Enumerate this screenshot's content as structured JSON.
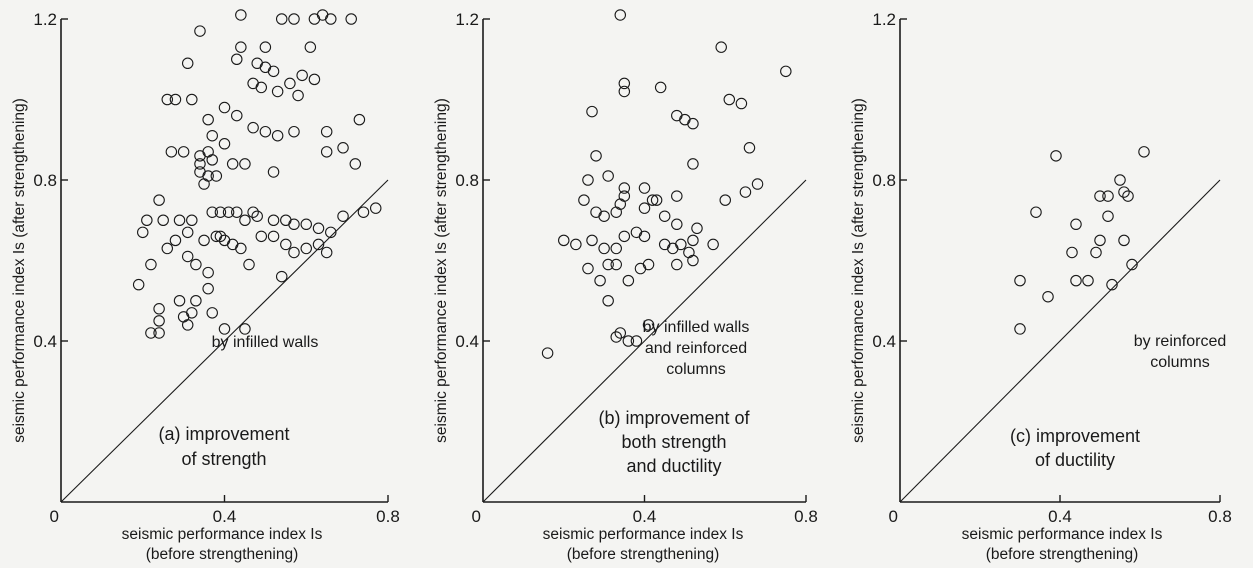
{
  "chart_data": [
    {
      "type": "scatter",
      "panel": "a",
      "caption_lines": [
        "(a) improvement",
        "of strength"
      ],
      "annotation_lines": [
        "by infilled walls"
      ],
      "xlabel_lines": [
        "seismic performance index Is",
        "(before strengthening)"
      ],
      "ylabel": "seismic performance index Is (after strengthening)",
      "xlim": [
        0,
        0.8
      ],
      "ylim": [
        0,
        1.2
      ],
      "x_ticks": [
        {
          "v": 0,
          "label": "0"
        },
        {
          "v": 0.4,
          "label": "0.4"
        },
        {
          "v": 0.8,
          "label": "0.8"
        }
      ],
      "y_ticks": [
        {
          "v": 0.4,
          "label": "0.4"
        },
        {
          "v": 0.8,
          "label": "0.8"
        },
        {
          "v": 1.2,
          "label": "1.2"
        }
      ],
      "reference_line": "y = x",
      "points": [
        [
          0.44,
          1.21
        ],
        [
          0.54,
          1.2
        ],
        [
          0.57,
          1.2
        ],
        [
          0.62,
          1.2
        ],
        [
          0.64,
          1.21
        ],
        [
          0.66,
          1.2
        ],
        [
          0.71,
          1.2
        ],
        [
          0.34,
          1.17
        ],
        [
          0.44,
          1.13
        ],
        [
          0.5,
          1.13
        ],
        [
          0.61,
          1.13
        ],
        [
          0.43,
          1.1
        ],
        [
          0.48,
          1.09
        ],
        [
          0.5,
          1.08
        ],
        [
          0.52,
          1.07
        ],
        [
          0.59,
          1.06
        ],
        [
          0.62,
          1.05
        ],
        [
          0.31,
          1.09
        ],
        [
          0.47,
          1.04
        ],
        [
          0.49,
          1.03
        ],
        [
          0.53,
          1.02
        ],
        [
          0.56,
          1.04
        ],
        [
          0.58,
          1.01
        ],
        [
          0.26,
          1.0
        ],
        [
          0.28,
          1.0
        ],
        [
          0.32,
          1.0
        ],
        [
          0.36,
          0.95
        ],
        [
          0.4,
          0.98
        ],
        [
          0.43,
          0.96
        ],
        [
          0.47,
          0.93
        ],
        [
          0.5,
          0.92
        ],
        [
          0.53,
          0.91
        ],
        [
          0.57,
          0.92
        ],
        [
          0.65,
          0.92
        ],
        [
          0.73,
          0.95
        ],
        [
          0.37,
          0.91
        ],
        [
          0.4,
          0.89
        ],
        [
          0.27,
          0.87
        ],
        [
          0.3,
          0.87
        ],
        [
          0.34,
          0.86
        ],
        [
          0.36,
          0.87
        ],
        [
          0.37,
          0.85
        ],
        [
          0.34,
          0.84
        ],
        [
          0.34,
          0.82
        ],
        [
          0.36,
          0.81
        ],
        [
          0.38,
          0.81
        ],
        [
          0.35,
          0.79
        ],
        [
          0.45,
          0.84
        ],
        [
          0.42,
          0.84
        ],
        [
          0.52,
          0.82
        ],
        [
          0.65,
          0.87
        ],
        [
          0.69,
          0.88
        ],
        [
          0.72,
          0.84
        ],
        [
          0.24,
          0.75
        ],
        [
          0.21,
          0.7
        ],
        [
          0.25,
          0.7
        ],
        [
          0.29,
          0.7
        ],
        [
          0.32,
          0.7
        ],
        [
          0.37,
          0.72
        ],
        [
          0.39,
          0.72
        ],
        [
          0.41,
          0.72
        ],
        [
          0.43,
          0.72
        ],
        [
          0.45,
          0.7
        ],
        [
          0.47,
          0.72
        ],
        [
          0.48,
          0.71
        ],
        [
          0.52,
          0.7
        ],
        [
          0.55,
          0.7
        ],
        [
          0.57,
          0.69
        ],
        [
          0.6,
          0.69
        ],
        [
          0.63,
          0.68
        ],
        [
          0.66,
          0.67
        ],
        [
          0.69,
          0.71
        ],
        [
          0.74,
          0.72
        ],
        [
          0.77,
          0.73
        ],
        [
          0.2,
          0.67
        ],
        [
          0.26,
          0.63
        ],
        [
          0.28,
          0.65
        ],
        [
          0.31,
          0.67
        ],
        [
          0.35,
          0.65
        ],
        [
          0.38,
          0.66
        ],
        [
          0.39,
          0.66
        ],
        [
          0.4,
          0.65
        ],
        [
          0.42,
          0.64
        ],
        [
          0.44,
          0.63
        ],
        [
          0.49,
          0.66
        ],
        [
          0.52,
          0.66
        ],
        [
          0.55,
          0.64
        ],
        [
          0.57,
          0.62
        ],
        [
          0.6,
          0.63
        ],
        [
          0.63,
          0.64
        ],
        [
          0.65,
          0.62
        ],
        [
          0.22,
          0.59
        ],
        [
          0.31,
          0.61
        ],
        [
          0.33,
          0.59
        ],
        [
          0.36,
          0.57
        ],
        [
          0.46,
          0.59
        ],
        [
          0.54,
          0.56
        ],
        [
          0.19,
          0.54
        ],
        [
          0.36,
          0.53
        ],
        [
          0.29,
          0.5
        ],
        [
          0.33,
          0.5
        ],
        [
          0.24,
          0.48
        ],
        [
          0.3,
          0.46
        ],
        [
          0.32,
          0.47
        ],
        [
          0.37,
          0.47
        ],
        [
          0.24,
          0.45
        ],
        [
          0.31,
          0.44
        ],
        [
          0.22,
          0.42
        ],
        [
          0.24,
          0.42
        ],
        [
          0.4,
          0.43
        ],
        [
          0.45,
          0.43
        ]
      ]
    },
    {
      "type": "scatter",
      "panel": "b",
      "caption_lines": [
        "(b) improvement of",
        "both strength",
        "and ductility"
      ],
      "annotation_lines": [
        "by infilled walls",
        "and reinforced",
        "columns"
      ],
      "xlabel_lines": [
        "seismic performance index Is",
        "(before strengthening)"
      ],
      "ylabel": "seismic performance index Is (after strengthening)",
      "xlim": [
        0,
        0.8
      ],
      "ylim": [
        0,
        1.2
      ],
      "x_ticks": [
        {
          "v": 0,
          "label": "0"
        },
        {
          "v": 0.4,
          "label": "0.4"
        },
        {
          "v": 0.8,
          "label": "0.8"
        }
      ],
      "y_ticks": [
        {
          "v": 0.4,
          "label": "0.4"
        },
        {
          "v": 0.8,
          "label": "0.8"
        },
        {
          "v": 1.2,
          "label": "1.2"
        }
      ],
      "reference_line": "y = x",
      "points": [
        [
          0.34,
          1.21
        ],
        [
          0.59,
          1.13
        ],
        [
          0.75,
          1.07
        ],
        [
          0.35,
          1.04
        ],
        [
          0.35,
          1.02
        ],
        [
          0.44,
          1.03
        ],
        [
          0.61,
          1.0
        ],
        [
          0.64,
          0.99
        ],
        [
          0.27,
          0.97
        ],
        [
          0.48,
          0.96
        ],
        [
          0.5,
          0.95
        ],
        [
          0.52,
          0.94
        ],
        [
          0.66,
          0.88
        ],
        [
          0.26,
          0.8
        ],
        [
          0.28,
          0.86
        ],
        [
          0.2,
          0.65
        ],
        [
          0.25,
          0.75
        ],
        [
          0.31,
          0.81
        ],
        [
          0.35,
          0.78
        ],
        [
          0.35,
          0.76
        ],
        [
          0.4,
          0.78
        ],
        [
          0.42,
          0.75
        ],
        [
          0.43,
          0.75
        ],
        [
          0.48,
          0.76
        ],
        [
          0.52,
          0.84
        ],
        [
          0.6,
          0.75
        ],
        [
          0.65,
          0.77
        ],
        [
          0.68,
          0.79
        ],
        [
          0.28,
          0.72
        ],
        [
          0.3,
          0.71
        ],
        [
          0.33,
          0.72
        ],
        [
          0.34,
          0.74
        ],
        [
          0.4,
          0.73
        ],
        [
          0.45,
          0.71
        ],
        [
          0.48,
          0.69
        ],
        [
          0.53,
          0.68
        ],
        [
          0.23,
          0.64
        ],
        [
          0.27,
          0.65
        ],
        [
          0.3,
          0.63
        ],
        [
          0.33,
          0.63
        ],
        [
          0.35,
          0.66
        ],
        [
          0.38,
          0.67
        ],
        [
          0.4,
          0.66
        ],
        [
          0.45,
          0.64
        ],
        [
          0.47,
          0.63
        ],
        [
          0.49,
          0.64
        ],
        [
          0.51,
          0.62
        ],
        [
          0.52,
          0.65
        ],
        [
          0.57,
          0.64
        ],
        [
          0.26,
          0.58
        ],
        [
          0.31,
          0.59
        ],
        [
          0.33,
          0.59
        ],
        [
          0.36,
          0.55
        ],
        [
          0.41,
          0.59
        ],
        [
          0.39,
          0.58
        ],
        [
          0.48,
          0.59
        ],
        [
          0.29,
          0.55
        ],
        [
          0.52,
          0.6
        ],
        [
          0.31,
          0.5
        ],
        [
          0.34,
          0.42
        ],
        [
          0.36,
          0.4
        ],
        [
          0.38,
          0.4
        ],
        [
          0.33,
          0.41
        ],
        [
          0.41,
          0.44
        ],
        [
          0.16,
          0.37
        ]
      ]
    },
    {
      "type": "scatter",
      "panel": "c",
      "caption_lines": [
        "(c) improvement",
        "of ductility"
      ],
      "annotation_lines": [
        "by reinforced",
        "columns"
      ],
      "xlabel_lines": [
        "seismic performance index Is",
        "(before strengthening)"
      ],
      "ylabel": "seismic performance index Is (after strengthening)",
      "xlim": [
        0,
        0.8
      ],
      "ylim": [
        0,
        1.2
      ],
      "x_ticks": [
        {
          "v": 0,
          "label": "0"
        },
        {
          "v": 0.4,
          "label": "0.4"
        },
        {
          "v": 0.8,
          "label": "0.8"
        }
      ],
      "y_ticks": [
        {
          "v": 0.4,
          "label": "0.4"
        },
        {
          "v": 0.8,
          "label": "0.8"
        },
        {
          "v": 1.2,
          "label": "1.2"
        }
      ],
      "reference_line": "y = x",
      "points": [
        [
          0.39,
          0.86
        ],
        [
          0.61,
          0.87
        ],
        [
          0.55,
          0.8
        ],
        [
          0.56,
          0.77
        ],
        [
          0.5,
          0.76
        ],
        [
          0.52,
          0.76
        ],
        [
          0.57,
          0.76
        ],
        [
          0.52,
          0.71
        ],
        [
          0.34,
          0.72
        ],
        [
          0.44,
          0.69
        ],
        [
          0.5,
          0.65
        ],
        [
          0.56,
          0.65
        ],
        [
          0.43,
          0.62
        ],
        [
          0.49,
          0.62
        ],
        [
          0.58,
          0.59
        ],
        [
          0.3,
          0.55
        ],
        [
          0.37,
          0.51
        ],
        [
          0.44,
          0.55
        ],
        [
          0.47,
          0.55
        ],
        [
          0.53,
          0.54
        ],
        [
          0.3,
          0.43
        ]
      ]
    }
  ]
}
